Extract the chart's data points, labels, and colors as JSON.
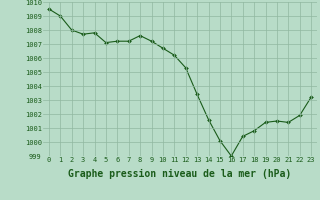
{
  "x": [
    0,
    1,
    2,
    3,
    4,
    5,
    6,
    7,
    8,
    9,
    10,
    11,
    12,
    13,
    14,
    15,
    16,
    17,
    18,
    19,
    20,
    21,
    22,
    23
  ],
  "y": [
    1009.5,
    1009.0,
    1008.0,
    1007.7,
    1007.8,
    1007.1,
    1007.2,
    1007.2,
    1007.6,
    1007.2,
    1006.7,
    1006.2,
    1005.3,
    1003.4,
    1001.6,
    1000.1,
    999.0,
    1000.4,
    1000.8,
    1001.4,
    1001.5,
    1001.4,
    1001.9,
    1003.2
  ],
  "line_color": "#1a5c1a",
  "marker_color": "#1a5c1a",
  "background_color": "#b8dcc8",
  "grid_color": "#90b8a0",
  "xlabel": "Graphe pression niveau de la mer (hPa)",
  "xlim": [
    -0.5,
    23.5
  ],
  "ylim": [
    999,
    1010
  ],
  "yticks": [
    999,
    1000,
    1001,
    1002,
    1003,
    1004,
    1005,
    1006,
    1007,
    1008,
    1009,
    1010
  ],
  "xticks": [
    0,
    1,
    2,
    3,
    4,
    5,
    6,
    7,
    8,
    9,
    10,
    11,
    12,
    13,
    14,
    15,
    16,
    17,
    18,
    19,
    20,
    21,
    22,
    23
  ],
  "tick_label_fontsize": 5.0,
  "xlabel_fontsize": 7.0,
  "line_width": 0.8,
  "marker_size": 2.0
}
